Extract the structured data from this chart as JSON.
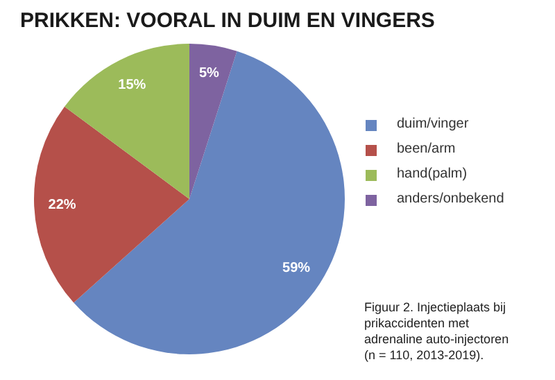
{
  "chart_data": {
    "type": "pie",
    "title": "PRIKKEN: VOORAL IN DUIM EN VINGERS",
    "categories": [
      "duim/vinger",
      "been/arm",
      "hand(palm)",
      "anders/onbekend"
    ],
    "values": [
      59,
      22,
      15,
      5
    ],
    "value_labels": [
      "59%",
      "22%",
      "15%",
      "5%"
    ],
    "colors": [
      "#6585c0",
      "#b5504a",
      "#9cbb5a",
      "#7e63a0"
    ],
    "legend": "right",
    "annotations": [
      "Figuur 2. Injectieplaats bij prikaccidenten met adrenaline auto-injectoren (n = 110, 2013-2019)."
    ]
  }
}
